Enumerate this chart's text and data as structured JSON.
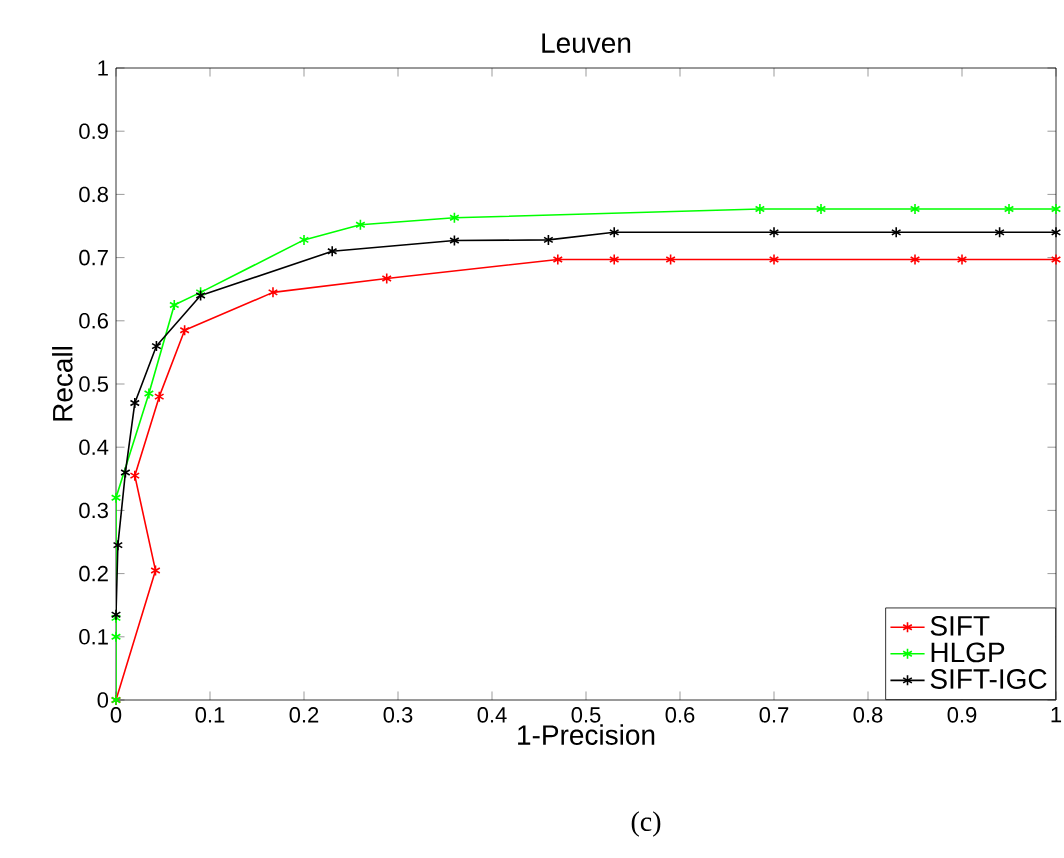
{
  "chart_data": {
    "type": "line",
    "title": "Leuven",
    "xlabel": "1-Precision",
    "ylabel": "Recall",
    "annotations": [
      "(c)"
    ],
    "xlim": [
      0,
      1
    ],
    "ylim": [
      0,
      1
    ],
    "xticks": [
      0,
      0.1,
      0.2,
      0.3,
      0.4,
      0.5,
      0.6,
      0.7,
      0.8,
      0.9,
      1
    ],
    "yticks": [
      0,
      0.1,
      0.2,
      0.3,
      0.4,
      0.5,
      0.6,
      0.7,
      0.8,
      0.9,
      1
    ],
    "legend": "bottom right",
    "marker": "cross",
    "grid": false,
    "series": [
      {
        "name": "SIFT",
        "color": "#ff0000",
        "x": [
          0,
          0.042,
          0.02,
          0.046,
          0.073,
          0.167,
          0.288,
          0.47,
          0.53,
          0.59,
          0.7,
          0.85,
          0.9,
          1.0
        ],
        "values": [
          0,
          0.205,
          0.355,
          0.48,
          0.585,
          0.645,
          0.667,
          0.697,
          0.697,
          0.697,
          0.697,
          0.697,
          0.697,
          0.697
        ]
      },
      {
        "name": "HLGP",
        "color": "#00ff00",
        "x": [
          0,
          0,
          0,
          0,
          0.035,
          0.062,
          0.09,
          0.2,
          0.26,
          0.36,
          0.685,
          0.75,
          0.85,
          0.95,
          1.0
        ],
        "values": [
          0,
          0.1,
          0.13,
          0.32,
          0.485,
          0.625,
          0.645,
          0.728,
          0.752,
          0.763,
          0.777,
          0.777,
          0.777,
          0.777,
          0.777
        ]
      },
      {
        "name": "SIFT-IGC",
        "color": "#000000",
        "x": [
          0,
          0.002,
          0.01,
          0.02,
          0.043,
          0.09,
          0.23,
          0.36,
          0.46,
          0.53,
          0.7,
          0.83,
          0.94,
          1.0
        ],
        "values": [
          0.135,
          0.245,
          0.36,
          0.47,
          0.56,
          0.64,
          0.71,
          0.727,
          0.728,
          0.74,
          0.74,
          0.74,
          0.74,
          0.74
        ]
      }
    ]
  }
}
